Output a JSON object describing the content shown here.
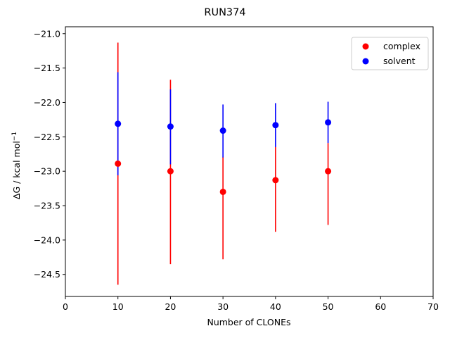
{
  "chart_data": {
    "type": "scatter",
    "title": "RUN374",
    "xlabel": "Number of CLONEs",
    "ylabel": {
      "main": "ΔG / kcal mol",
      "sup": "−1"
    },
    "xlim": [
      0,
      70
    ],
    "ylim": [
      -24.82,
      -20.9
    ],
    "xticks": [
      0,
      10,
      20,
      30,
      40,
      50,
      60,
      70
    ],
    "xtick_labels": [
      "0",
      "10",
      "20",
      "30",
      "40",
      "50",
      "60",
      "70"
    ],
    "yticks": [
      -21.0,
      -21.5,
      -22.0,
      -22.5,
      -23.0,
      -23.5,
      -24.0,
      -24.5
    ],
    "ytick_labels": [
      "−21.0",
      "−21.5",
      "−22.0",
      "−22.5",
      "−23.0",
      "−23.5",
      "−24.0",
      "−24.5"
    ],
    "grid": false,
    "legend_position": "top-right",
    "series": [
      {
        "name": "complex",
        "color": "#ff0000",
        "x": [
          10,
          20,
          30,
          40,
          50
        ],
        "y": [
          -22.89,
          -23.0,
          -23.3,
          -23.13,
          -23.0
        ],
        "err_low": [
          -24.65,
          -24.35,
          -24.28,
          -23.88,
          -23.78
        ],
        "err_high": [
          -21.13,
          -21.67,
          -22.79,
          -22.65,
          -22.59
        ]
      },
      {
        "name": "solvent",
        "color": "#0000ff",
        "x": [
          10,
          20,
          30,
          40,
          50
        ],
        "y": [
          -22.31,
          -22.35,
          -22.41,
          -22.33,
          -22.29
        ],
        "err_low": [
          -23.06,
          -22.9,
          -22.8,
          -22.65,
          -22.59
        ],
        "err_high": [
          -21.56,
          -21.81,
          -22.03,
          -22.01,
          -21.99
        ]
      }
    ]
  }
}
